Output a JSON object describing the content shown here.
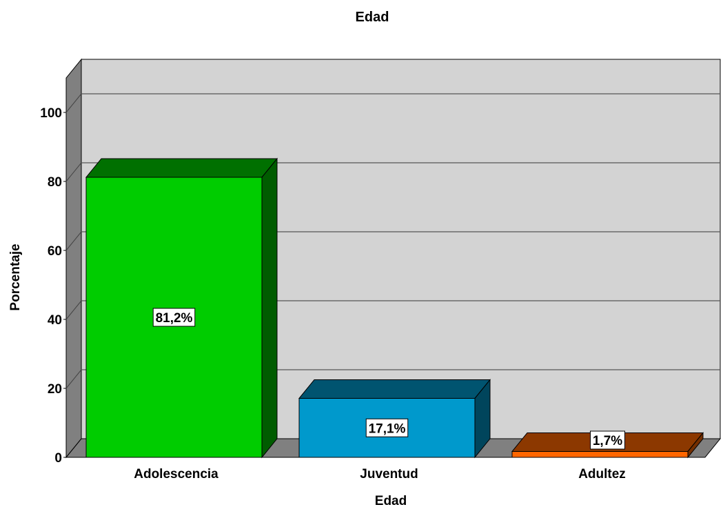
{
  "chart_data": {
    "type": "bar",
    "title": "Edad",
    "xlabel": "Edad",
    "ylabel": "Porcentaje",
    "categories": [
      "Adolescencia",
      "Juventud",
      "Adultez"
    ],
    "values": [
      81.2,
      17.1,
      1.7
    ],
    "data_labels": [
      "81,2%",
      "17,1%",
      "1,7%"
    ],
    "colors": [
      "#00CC00",
      "#0099CC",
      "#FF6600"
    ],
    "ylim": [
      0,
      110
    ],
    "yticks": [
      0,
      20,
      40,
      60,
      80,
      100
    ],
    "grid": true,
    "legend": "none",
    "style": "3d"
  }
}
